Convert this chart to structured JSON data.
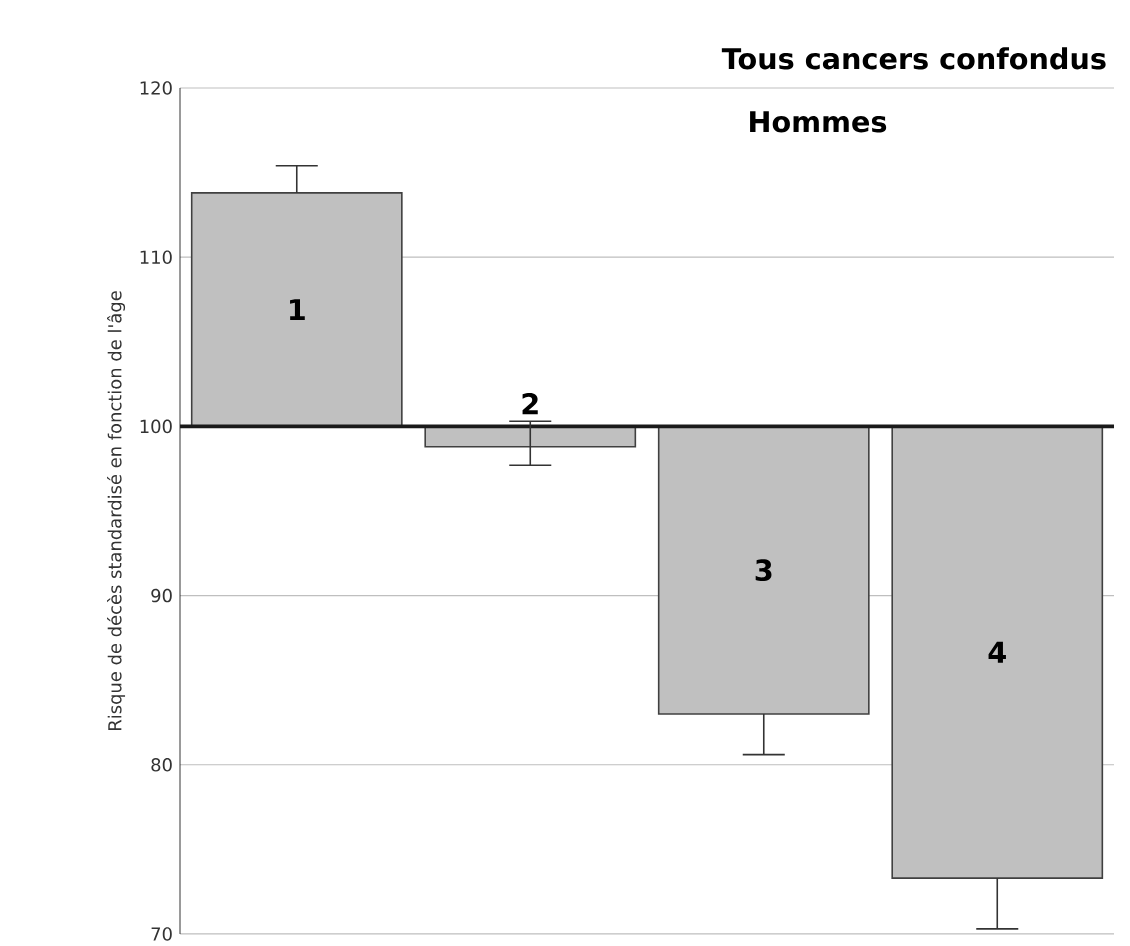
{
  "chart_data": {
    "type": "bar",
    "title": "Tous cancers confondus",
    "subtitle": "Hommes",
    "ylabel": "Risque de décès standardisé en fonction de l'âge",
    "categories": [
      "1",
      "2",
      "3",
      "4"
    ],
    "values": [
      13.8,
      -1.2,
      -17.0,
      -26.7
    ],
    "base": [
      100,
      100,
      100,
      100
    ],
    "errors": [
      [
        113.8,
        115.4
      ],
      [
        97.7,
        100.3
      ],
      [
        80.6,
        83.0
      ],
      [
        70.3,
        73.3
      ]
    ],
    "color": "#c0c0c0",
    "ylim": [
      70,
      120
    ],
    "yticks": [
      70,
      80,
      90,
      100,
      110,
      120
    ],
    "grid": "y",
    "ref_lines": [
      {
        "axis": "y",
        "value": 100,
        "color": "#1a1a1a"
      }
    ]
  }
}
